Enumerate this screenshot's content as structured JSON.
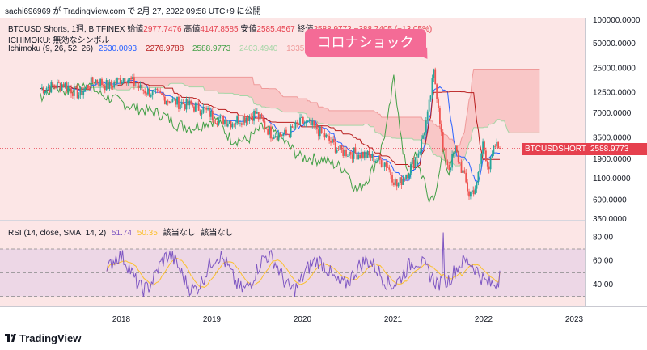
{
  "header": {
    "text": "sachi696969 が TradingView.com で 2月 27, 2022 09:58 UTC+9 に公開"
  },
  "legend": {
    "symbol_line": {
      "prefix": "BTCUSD Shorts, 1週, BITFINEX",
      "open_label": "始値",
      "open": "2977.7476",
      "high_label": "高値",
      "high": "4147.8585",
      "low_label": "安値",
      "low": "2585.4567",
      "close_label": "終値",
      "close": "2588.9773",
      "change": "−388.7405 (−13.05%)"
    },
    "ichimoku_title": "ICHIMOKU: 無効なシンボル",
    "ichimoku_line": {
      "label": "Ichimoku (9, 26, 52, 26)",
      "v1": "2530.0093",
      "v2": "2276.9788",
      "v3": "2588.9773",
      "v4": "2403.4940",
      "v5": "13352.1714"
    },
    "rsi_line": {
      "label": "RSI (14, close, SMA, 14, 2)",
      "v1": "51.74",
      "v2": "50.35",
      "v3": "該当なし",
      "v4": "該当なし"
    }
  },
  "annotation": {
    "text": "コロナショック"
  },
  "price_tag": {
    "name": "BTCUSDSHORTS",
    "value": "2588.9773"
  },
  "colors": {
    "conversion": "#2962ff",
    "base": "#b71c1c",
    "lagging": "#43a047",
    "leading_a": "#a5d6a7",
    "leading_b": "#ef9a9a",
    "cloud": "#f8c1c1",
    "rsi": "#7e57c2",
    "rsi_ma": "#fbc02d",
    "up": "#26a69a",
    "down": "#ef5350",
    "price_tag": "#e6404e"
  },
  "footer": {
    "brand": "TradingView"
  },
  "chart_data": [
    {
      "type": "candlestick",
      "title": "BTCUSD Shorts, 1週, BITFINEX",
      "y_scale": "log",
      "y_ticks": [
        "100000.0000",
        "50000.0000",
        "25000.0000",
        "12500.0000",
        "7000.0000",
        "3500.0000",
        "1900.0000",
        "1100.0000",
        "600.0000",
        "350.0000"
      ],
      "x_ticks": [
        "2018",
        "2019",
        "2020",
        "2021",
        "2022",
        "2023"
      ],
      "last_value": 2588.9773
    },
    {
      "type": "line",
      "title": "RSI (14, close, SMA, 14, 2)",
      "y_ticks": [
        "80.00",
        "60.00",
        "40.00"
      ],
      "levels": [
        70,
        50,
        30
      ],
      "last_rsi": 51.74,
      "last_ma": 50.35
    }
  ]
}
